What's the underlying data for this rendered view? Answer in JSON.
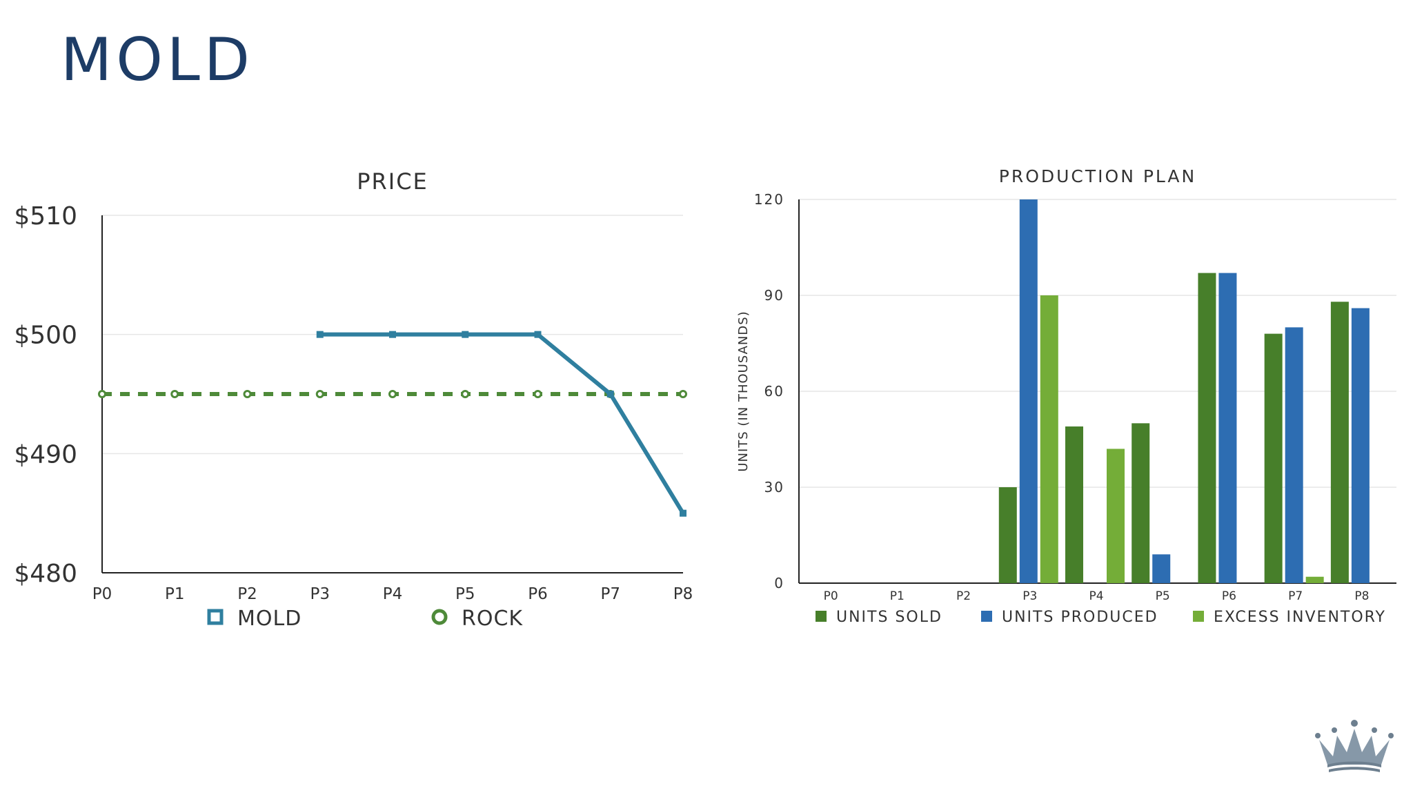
{
  "page": {
    "title": "MOLD",
    "title_color": "#1d3c66"
  },
  "colors": {
    "mold": "#2f7f9f",
    "rock": "#4e8a39",
    "units_sold": "#477f2a",
    "units_produced": "#2d6db2",
    "excess_inventory": "#74ad38",
    "axis": "#222222",
    "grid": "#e6e6e6",
    "text": "#333333"
  },
  "logo": {
    "icon": "crown-icon"
  },
  "chart_data": [
    {
      "type": "line",
      "title": "PRICE",
      "x": [
        "P0",
        "P1",
        "P2",
        "P3",
        "P4",
        "P5",
        "P6",
        "P7",
        "P8"
      ],
      "ylim": [
        480,
        510
      ],
      "yticks": [
        480,
        490,
        500,
        510
      ],
      "ytick_labels": [
        "$480",
        "$490",
        "$500",
        "$510"
      ],
      "grid": true,
      "legend_position": "bottom",
      "series": [
        {
          "name": "MOLD",
          "marker": "square",
          "dashed": false,
          "values": [
            null,
            null,
            null,
            500,
            500,
            500,
            500,
            495,
            485
          ]
        },
        {
          "name": "ROCK",
          "marker": "circle",
          "dashed": true,
          "values": [
            495,
            495,
            495,
            495,
            495,
            495,
            495,
            495,
            495
          ]
        }
      ]
    },
    {
      "type": "bar",
      "title": "PRODUCTION PLAN",
      "ylabel": "UNITS (IN THOUSANDS)",
      "categories": [
        "P0",
        "P1",
        "P2",
        "P3",
        "P4",
        "P5",
        "P6",
        "P7",
        "P8"
      ],
      "ylim": [
        0,
        120
      ],
      "yticks": [
        0,
        30,
        60,
        90,
        120
      ],
      "grid": true,
      "legend_position": "bottom",
      "series": [
        {
          "name": "UNITS SOLD",
          "values": [
            0,
            0,
            0,
            30,
            49,
            50,
            97,
            78,
            88
          ]
        },
        {
          "name": "UNITS PRODUCED",
          "values": [
            0,
            0,
            0,
            120,
            0,
            9,
            97,
            80,
            86
          ]
        },
        {
          "name": "EXCESS INVENTORY",
          "values": [
            0,
            0,
            0,
            90,
            42,
            0,
            0,
            2,
            0
          ]
        }
      ]
    }
  ]
}
